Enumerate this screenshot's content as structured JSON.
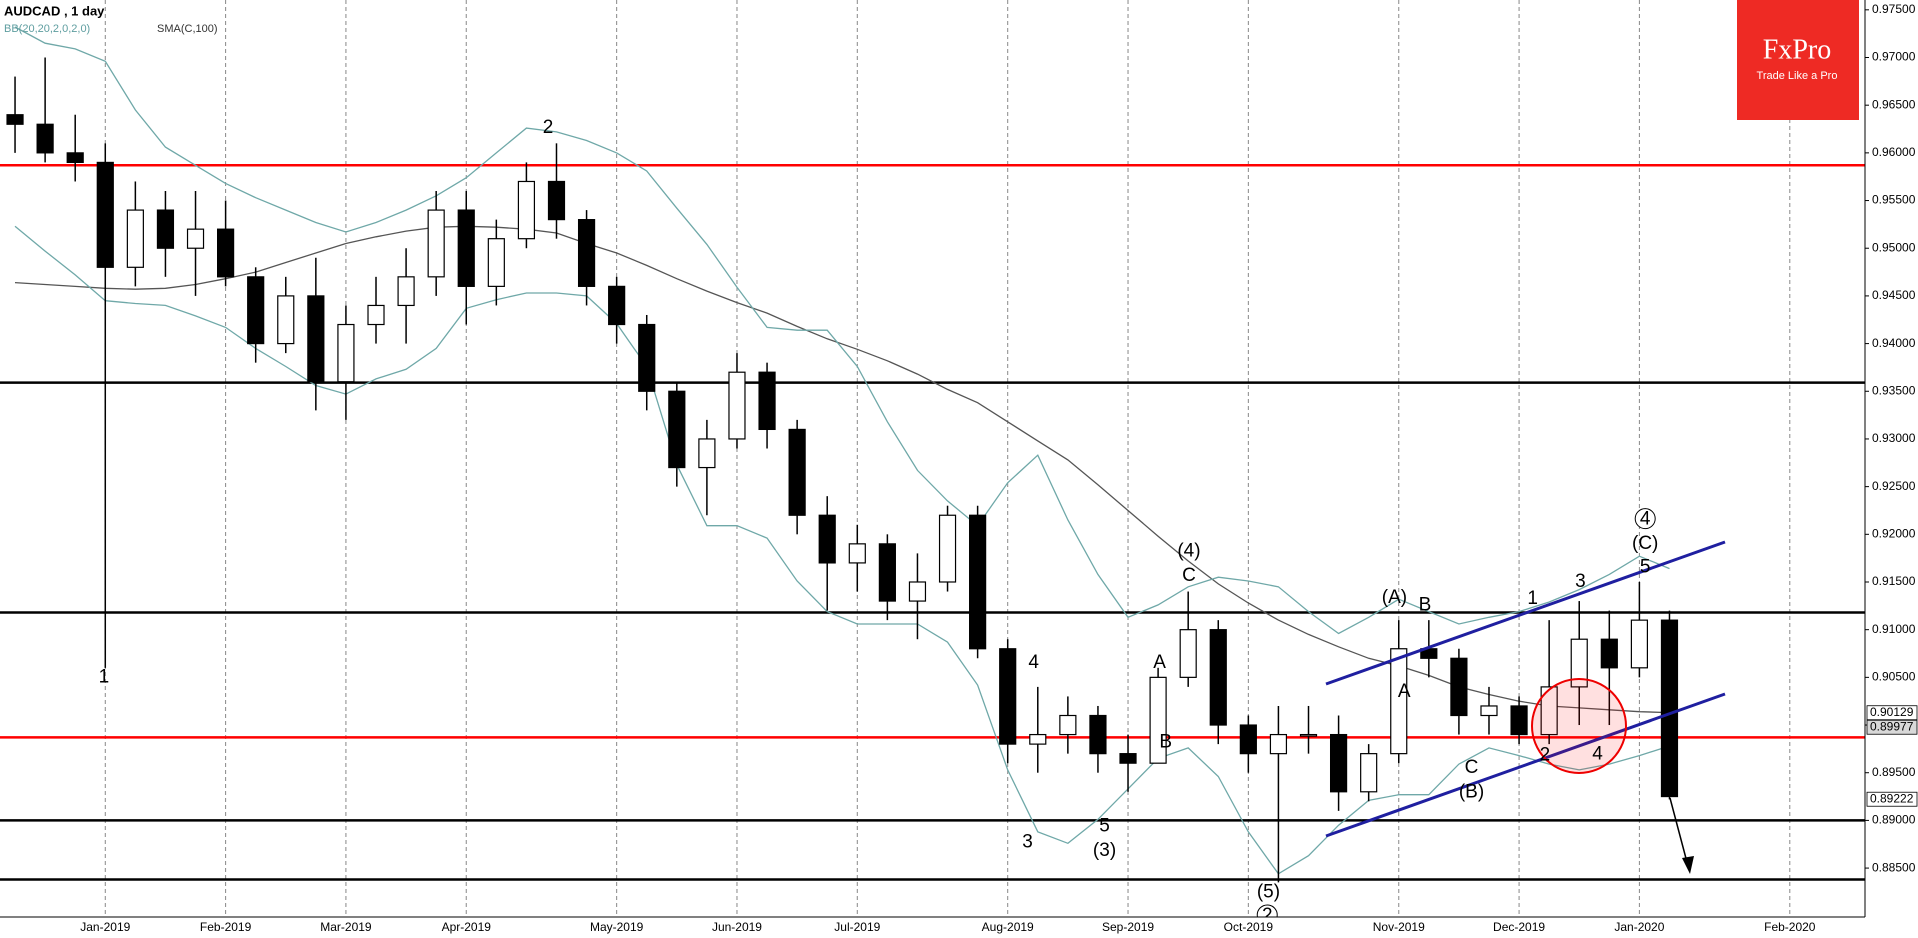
{
  "chart_data": {
    "type": "candlestick",
    "title": "AUDCAD , 1 day",
    "categories": [
      null,
      null,
      null,
      "Jan-2019",
      null,
      null,
      null,
      "Feb-2019",
      null,
      null,
      null,
      "Mar-2019",
      null,
      null,
      null,
      "Apr-2019",
      null,
      null,
      null,
      null,
      "May-2019",
      null,
      null,
      null,
      "Jun-2019",
      null,
      null,
      null,
      "Jul-2019",
      null,
      null,
      null,
      null,
      "Aug-2019",
      null,
      null,
      null,
      "Sep-2019",
      null,
      null,
      null,
      "Oct-2019",
      null,
      null,
      null,
      null,
      "Nov-2019",
      null,
      null,
      null,
      "Dec-2019",
      null,
      null,
      null,
      "Jan-2020",
      null,
      null,
      null,
      null,
      "Feb-2020",
      null,
      null
    ],
    "open": [
      0.964,
      0.963,
      0.96,
      0.959,
      0.948,
      0.954,
      0.95,
      0.952,
      0.947,
      0.94,
      0.945,
      0.936,
      0.942,
      0.944,
      0.947,
      0.954,
      0.946,
      0.951,
      0.957,
      0.953,
      0.946,
      0.942,
      0.935,
      0.927,
      0.93,
      0.937,
      0.931,
      0.922,
      0.917,
      0.919,
      0.913,
      0.915,
      0.922,
      0.908,
      0.898,
      0.899,
      0.901,
      0.897,
      0.896,
      0.905,
      0.91,
      0.9,
      0.897,
      0.899,
      0.899,
      0.893,
      0.897,
      0.908,
      0.907,
      0.901,
      0.902,
      0.899,
      0.904,
      0.909,
      0.906,
      0.911,
      null,
      null,
      null,
      null,
      null,
      null
    ],
    "high": [
      0.968,
      0.97,
      0.964,
      0.961,
      0.957,
      0.956,
      0.956,
      0.955,
      0.948,
      0.947,
      0.949,
      0.944,
      0.947,
      0.95,
      0.956,
      0.956,
      0.953,
      0.959,
      0.961,
      0.954,
      0.947,
      0.943,
      0.936,
      0.932,
      0.939,
      0.938,
      0.932,
      0.924,
      0.921,
      0.92,
      0.918,
      0.923,
      0.923,
      0.909,
      0.904,
      0.903,
      0.902,
      0.899,
      0.906,
      0.914,
      0.911,
      0.901,
      0.902,
      0.902,
      0.901,
      0.898,
      0.911,
      0.911,
      0.908,
      0.904,
      0.903,
      0.911,
      0.913,
      0.912,
      0.915,
      0.912,
      null,
      null,
      null,
      null,
      null,
      null
    ],
    "low": [
      0.96,
      0.959,
      0.957,
      0.906,
      0.946,
      0.947,
      0.945,
      0.946,
      0.938,
      0.939,
      0.933,
      0.932,
      0.94,
      0.94,
      0.945,
      0.942,
      0.944,
      0.95,
      0.951,
      0.944,
      0.94,
      0.933,
      0.925,
      0.922,
      0.929,
      0.929,
      0.92,
      0.912,
      0.914,
      0.911,
      0.909,
      0.914,
      0.907,
      0.896,
      0.895,
      0.897,
      0.895,
      0.893,
      0.896,
      0.904,
      0.898,
      0.895,
      0.8835,
      0.897,
      0.891,
      0.892,
      0.896,
      0.905,
      0.899,
      0.899,
      0.898,
      0.898,
      0.9,
      0.9,
      0.905,
      0.8922,
      null,
      null,
      null,
      null,
      null,
      null
    ],
    "close": [
      0.963,
      0.96,
      0.959,
      0.948,
      0.954,
      0.95,
      0.952,
      0.947,
      0.94,
      0.945,
      0.936,
      0.942,
      0.944,
      0.947,
      0.954,
      0.946,
      0.951,
      0.957,
      0.953,
      0.946,
      0.942,
      0.935,
      0.927,
      0.93,
      0.937,
      0.931,
      0.922,
      0.917,
      0.919,
      0.913,
      0.915,
      0.922,
      0.908,
      0.898,
      0.899,
      0.901,
      0.897,
      0.896,
      0.905,
      0.91,
      0.9,
      0.897,
      0.899,
      0.899,
      0.893,
      0.897,
      0.908,
      0.907,
      0.901,
      0.902,
      0.899,
      0.904,
      0.909,
      0.906,
      0.911,
      0.8925,
      null,
      null,
      null,
      null,
      null,
      null
    ],
    "indicators": [
      {
        "name": "SMA(C,100)",
        "color": "#555555",
        "values": [
          0.9464,
          0.9462,
          0.946,
          0.9458,
          0.9457,
          0.9458,
          0.9462,
          0.9468,
          0.9475,
          0.9485,
          0.9495,
          0.9505,
          0.9512,
          0.9518,
          0.9522,
          0.9523,
          0.9522,
          0.952,
          0.9516,
          0.9505,
          0.9495,
          0.9482,
          0.9468,
          0.9455,
          0.9443,
          0.9432,
          0.9418,
          0.9405,
          0.9394,
          0.9382,
          0.9368,
          0.9352,
          0.9338,
          0.9318,
          0.9298,
          0.9278,
          0.9252,
          0.9225,
          0.9198,
          0.9172,
          0.9148,
          0.9128,
          0.911,
          0.9095,
          0.9082,
          0.907,
          0.9062,
          0.9052,
          0.904,
          0.9032,
          0.9025,
          0.902,
          0.9018,
          0.9016,
          0.9014,
          0.9013,
          null,
          null,
          null,
          null,
          null,
          null
        ]
      },
      {
        "name": "BB(20,20,2,0,2,0)",
        "color": "#6fa8a8",
        "upper": [
          0.9732,
          0.9715,
          0.9709,
          0.9696,
          0.9645,
          0.9606,
          0.9587,
          0.9568,
          0.9553,
          0.954,
          0.9527,
          0.9517,
          0.9527,
          0.954,
          0.9555,
          0.9574,
          0.96,
          0.9626,
          0.9622,
          0.9613,
          0.96,
          0.9581,
          0.9542,
          0.9504,
          0.9459,
          0.9417,
          0.9414,
          0.9414,
          0.9376,
          0.9318,
          0.9267,
          0.9235,
          0.9209,
          0.9254,
          0.9283,
          0.9215,
          0.9158,
          0.9113,
          0.9126,
          0.9145,
          0.9155,
          0.9151,
          0.9145,
          0.9119,
          0.9096,
          0.9113,
          0.9132,
          0.9119,
          0.9106,
          0.9113,
          0.9119,
          0.9129,
          0.9142,
          0.9158,
          0.9177,
          0.9164,
          null,
          null,
          null,
          null,
          null,
          null
        ],
        "lower": [
          0.9523,
          0.9497,
          0.9472,
          0.9445,
          0.9442,
          0.944,
          0.9429,
          0.9417,
          0.9395,
          0.9376,
          0.9356,
          0.9347,
          0.9363,
          0.9373,
          0.9395,
          0.9437,
          0.9446,
          0.9453,
          0.9453,
          0.945,
          0.9421,
          0.9376,
          0.9273,
          0.9209,
          0.9209,
          0.9196,
          0.9151,
          0.9119,
          0.9106,
          0.9106,
          0.9106,
          0.9087,
          0.9042,
          0.8953,
          0.8888,
          0.8876,
          0.8901,
          0.8933,
          0.8965,
          0.8976,
          0.8946,
          0.8888,
          0.8844,
          0.8863,
          0.8895,
          0.8921,
          0.8927,
          0.8927,
          0.8959,
          0.8976,
          0.8968,
          0.8959,
          0.8953,
          0.8959,
          0.8968,
          0.8978,
          null,
          null,
          null,
          null,
          null,
          null
        ]
      }
    ],
    "levels": [
      {
        "value": 0.9587,
        "color": "#ff0000"
      },
      {
        "value": 0.8987,
        "color": "#ff0000"
      },
      {
        "value": 0.9359,
        "color": "#000000"
      },
      {
        "value": 0.9118,
        "color": "#000000"
      },
      {
        "value": 0.89,
        "color": "#000000"
      },
      {
        "value": 0.8838,
        "color": "#000000"
      }
    ],
    "price_labels": [
      0.90129,
      0.89977,
      0.89222
    ],
    "annotations": [
      {
        "text": "1"
      },
      {
        "text": "2"
      },
      {
        "text": "(4)"
      },
      {
        "text": "C"
      },
      {
        "text": "A"
      },
      {
        "text": "B"
      },
      {
        "text": "4"
      },
      {
        "text": "3"
      },
      {
        "text": "5"
      },
      {
        "text": "(3)"
      },
      {
        "text": "(5)"
      },
      {
        "text": "2",
        "circled": true
      },
      {
        "text": "(A)"
      },
      {
        "text": "B"
      },
      {
        "text": "A"
      },
      {
        "text": "C"
      },
      {
        "text": "(B)"
      },
      {
        "text": "1"
      },
      {
        "text": "3"
      },
      {
        "text": "2"
      },
      {
        "text": "4"
      },
      {
        "text": "4",
        "circled": true
      },
      {
        "text": "(C)"
      },
      {
        "text": "5"
      }
    ],
    "ylim": [
      0.87987,
      0.97603
    ],
    "yticks": [
      {
        "value": 0.975,
        "label": "0.97500"
      },
      {
        "value": 0.97,
        "label": "0.97000"
      },
      {
        "value": 0.965,
        "label": "0.96500"
      },
      {
        "value": 0.96,
        "label": "0.96000"
      },
      {
        "value": 0.955,
        "label": "0.95500"
      },
      {
        "value": 0.95,
        "label": "0.95000"
      },
      {
        "value": 0.945,
        "label": "0.94500"
      },
      {
        "value": 0.94,
        "label": "0.94000"
      },
      {
        "value": 0.935,
        "label": "0.93500"
      },
      {
        "value": 0.93,
        "label": "0.93000"
      },
      {
        "value": 0.925,
        "label": "0.92500"
      },
      {
        "value": 0.92,
        "label": "0.92000"
      },
      {
        "value": 0.915,
        "label": "0.91500"
      },
      {
        "value": 0.91,
        "label": "0.91000"
      },
      {
        "value": 0.905,
        "label": "0.90500"
      },
      {
        "value": 0.9,
        "label": "0.90000"
      },
      {
        "value": 0.895,
        "label": "0.89500"
      },
      {
        "value": 0.89,
        "label": "0.89000"
      },
      {
        "value": 0.885,
        "label": "0.88500"
      }
    ],
    "grid": true
  },
  "logo": {
    "name": "FxPro",
    "tagline": "Trade Like a Pro"
  }
}
